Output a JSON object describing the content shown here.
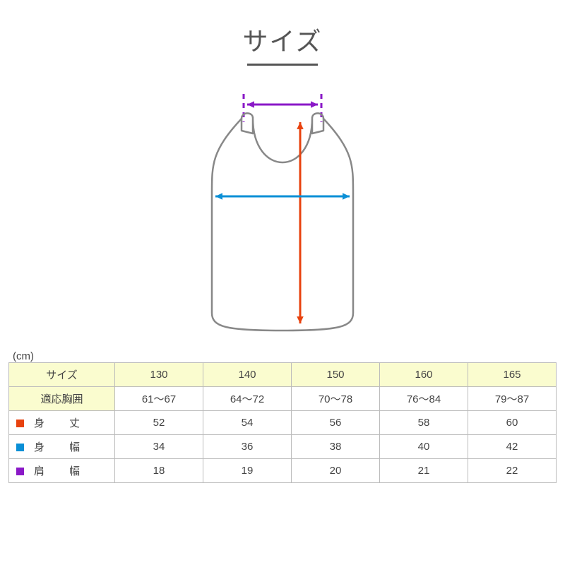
{
  "title": "サイズ",
  "unit_label": "(cm)",
  "diagram": {
    "outline_color": "#888888",
    "outline_width": 2.5,
    "arrows": {
      "length": {
        "color": "#e8420e",
        "width": 3
      },
      "width": {
        "color": "#0a8fd6",
        "width": 3
      },
      "shoulder": {
        "color": "#8a18c7",
        "width": 3
      }
    },
    "dashed_guide_color": "#8a18c7"
  },
  "table": {
    "header_bg": "#fafccf",
    "border_color": "#bbbbbb",
    "columns": [
      "130",
      "140",
      "150",
      "160",
      "165"
    ],
    "size_label": "サイズ",
    "fit_label": "適応胸囲",
    "fit_values": [
      "61〜67",
      "64〜72",
      "70〜78",
      "76〜84",
      "79〜87"
    ],
    "rows": [
      {
        "swatch": "#e8420e",
        "label": "身　丈",
        "values": [
          "52",
          "54",
          "56",
          "58",
          "60"
        ]
      },
      {
        "swatch": "#0a8fd6",
        "label": "身　幅",
        "values": [
          "34",
          "36",
          "38",
          "40",
          "42"
        ]
      },
      {
        "swatch": "#8a18c7",
        "label": "肩　幅",
        "values": [
          "18",
          "19",
          "20",
          "21",
          "22"
        ]
      }
    ]
  }
}
